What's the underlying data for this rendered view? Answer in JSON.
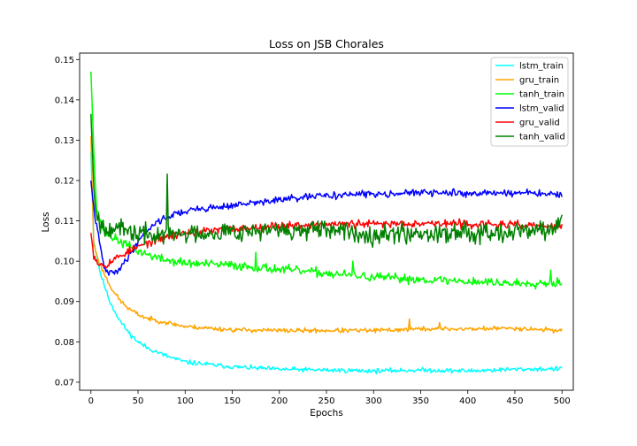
{
  "chart_data": {
    "type": "line",
    "title": "Loss on JSB Chorales",
    "xlabel": "Epochs",
    "ylabel": "Loss",
    "xlim": [
      -12,
      512
    ],
    "ylim": [
      0.068,
      0.1516
    ],
    "xticks": [
      0,
      50,
      100,
      150,
      200,
      250,
      300,
      350,
      400,
      450,
      500
    ],
    "yticks": [
      0.07,
      0.08,
      0.09,
      0.1,
      0.11,
      0.12,
      0.13,
      0.14,
      0.15
    ],
    "ytick_labels": [
      "0.07",
      "0.08",
      "0.09",
      "0.10",
      "0.11",
      "0.12",
      "0.13",
      "0.14",
      "0.15"
    ],
    "grid": false,
    "legend_position": "top-right",
    "series": [
      {
        "name": "lstm_train",
        "color": "#00ffff",
        "noise": 0.0004,
        "seed": 11,
        "points": [
          [
            0,
            0.127
          ],
          [
            3,
            0.105
          ],
          [
            10,
            0.097
          ],
          [
            20,
            0.09
          ],
          [
            30,
            0.0855
          ],
          [
            40,
            0.0823
          ],
          [
            50,
            0.08
          ],
          [
            60,
            0.0785
          ],
          [
            80,
            0.0765
          ],
          [
            100,
            0.075
          ],
          [
            150,
            0.0738
          ],
          [
            200,
            0.0732
          ],
          [
            250,
            0.073
          ],
          [
            300,
            0.0728
          ],
          [
            350,
            0.073
          ],
          [
            400,
            0.0728
          ],
          [
            450,
            0.0732
          ],
          [
            500,
            0.0733
          ]
        ],
        "spikes": []
      },
      {
        "name": "gru_train",
        "color": "#ffa500",
        "noise": 0.0004,
        "seed": 23,
        "points": [
          [
            0,
            0.131
          ],
          [
            3,
            0.104
          ],
          [
            10,
            0.099
          ],
          [
            20,
            0.094
          ],
          [
            30,
            0.0905
          ],
          [
            40,
            0.0882
          ],
          [
            50,
            0.0868
          ],
          [
            60,
            0.0858
          ],
          [
            80,
            0.0848
          ],
          [
            100,
            0.0838
          ],
          [
            150,
            0.083
          ],
          [
            200,
            0.0828
          ],
          [
            250,
            0.0828
          ],
          [
            300,
            0.0828
          ],
          [
            350,
            0.0832
          ],
          [
            400,
            0.0832
          ],
          [
            450,
            0.0834
          ],
          [
            500,
            0.0828
          ]
        ],
        "spikes": [
          [
            338,
            0.0857
          ],
          [
            370,
            0.0848
          ]
        ]
      },
      {
        "name": "tanh_train",
        "color": "#00ff00",
        "noise": 0.0008,
        "seed": 37,
        "points": [
          [
            0,
            0.147
          ],
          [
            3,
            0.128
          ],
          [
            6,
            0.113
          ],
          [
            15,
            0.107
          ],
          [
            30,
            0.105
          ],
          [
            50,
            0.1025
          ],
          [
            75,
            0.1005
          ],
          [
            100,
            0.0995
          ],
          [
            150,
            0.099
          ],
          [
            200,
            0.098
          ],
          [
            250,
            0.097
          ],
          [
            300,
            0.096
          ],
          [
            350,
            0.0955
          ],
          [
            400,
            0.095
          ],
          [
            450,
            0.0945
          ],
          [
            500,
            0.0948
          ]
        ],
        "spikes": [
          [
            175,
            0.1022
          ],
          [
            278,
            0.1
          ],
          [
            488,
            0.0978
          ]
        ]
      },
      {
        "name": "lstm_valid",
        "color": "#0000ff",
        "noise": 0.0006,
        "seed": 41,
        "points": [
          [
            0,
            0.12
          ],
          [
            3,
            0.113
          ],
          [
            8,
            0.106
          ],
          [
            15,
            0.0975
          ],
          [
            25,
            0.097
          ],
          [
            35,
            0.0995
          ],
          [
            45,
            0.103
          ],
          [
            55,
            0.1065
          ],
          [
            70,
            0.1098
          ],
          [
            90,
            0.1118
          ],
          [
            110,
            0.1128
          ],
          [
            150,
            0.1138
          ],
          [
            200,
            0.1152
          ],
          [
            250,
            0.1163
          ],
          [
            300,
            0.1167
          ],
          [
            350,
            0.117
          ],
          [
            400,
            0.1168
          ],
          [
            450,
            0.117
          ],
          [
            500,
            0.1165
          ]
        ],
        "spikes": []
      },
      {
        "name": "gru_valid",
        "color": "#ff0000",
        "noise": 0.0007,
        "seed": 53,
        "points": [
          [
            0,
            0.107
          ],
          [
            3,
            0.1015
          ],
          [
            8,
            0.0995
          ],
          [
            15,
            0.099
          ],
          [
            25,
            0.1005
          ],
          [
            40,
            0.1025
          ],
          [
            60,
            0.1045
          ],
          [
            80,
            0.106
          ],
          [
            100,
            0.107
          ],
          [
            150,
            0.108
          ],
          [
            200,
            0.1088
          ],
          [
            250,
            0.1092
          ],
          [
            300,
            0.1092
          ],
          [
            350,
            0.1095
          ],
          [
            400,
            0.1092
          ],
          [
            450,
            0.109
          ],
          [
            500,
            0.1085
          ]
        ],
        "spikes": []
      },
      {
        "name": "tanh_valid",
        "color": "#008000",
        "noise": 0.0017,
        "seed": 67,
        "points": [
          [
            0,
            0.1365
          ],
          [
            3,
            0.119
          ],
          [
            6,
            0.112
          ],
          [
            10,
            0.109
          ],
          [
            20,
            0.1085
          ],
          [
            40,
            0.1072
          ],
          [
            60,
            0.1065
          ],
          [
            80,
            0.1065
          ],
          [
            100,
            0.1068
          ],
          [
            150,
            0.1075
          ],
          [
            200,
            0.1075
          ],
          [
            250,
            0.1075
          ],
          [
            300,
            0.1068
          ],
          [
            350,
            0.107
          ],
          [
            400,
            0.1072
          ],
          [
            450,
            0.1075
          ],
          [
            490,
            0.1078
          ],
          [
            500,
            0.1103
          ]
        ],
        "spikes": [
          [
            81,
            0.1216
          ],
          [
            82,
            0.109
          ]
        ]
      }
    ]
  }
}
